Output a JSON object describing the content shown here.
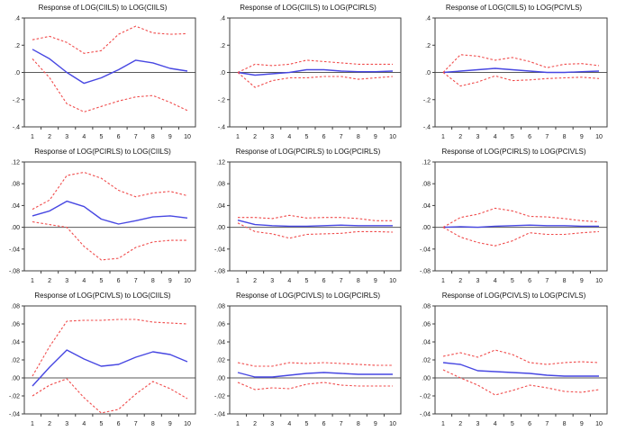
{
  "figure": {
    "layout": {
      "rows": 3,
      "cols": 3,
      "grid": false,
      "legend_position": "none"
    }
  },
  "colors": {
    "response_line": "#4747e2",
    "band_line": "#f04b4b",
    "zero_line": "#5a5a5a",
    "axis_frame": "#3f3f3f",
    "background": "#ffffff"
  },
  "chart_data": [
    {
      "type": "line",
      "title": "Response of LOG(CIILS) to LOG(CIILS)",
      "x": [
        1,
        2,
        3,
        4,
        5,
        6,
        7,
        8,
        9,
        10
      ],
      "xlabel": "",
      "ylabel": "",
      "ylim": [
        -0.4,
        0.4
      ],
      "ytick_values": [
        0.4,
        0.2,
        0.0,
        -0.2,
        -0.4
      ],
      "ytick_labels": [
        ".4",
        ".2",
        ".0",
        "-.2",
        "-.4"
      ],
      "zero_line": true,
      "series": [
        {
          "name": "response",
          "style": "solid",
          "values": [
            0.17,
            0.1,
            0.0,
            -0.08,
            -0.04,
            0.02,
            0.09,
            0.07,
            0.03,
            0.01
          ]
        },
        {
          "name": "upper-band",
          "style": "dashed",
          "values": [
            0.24,
            0.265,
            0.22,
            0.14,
            0.16,
            0.28,
            0.34,
            0.29,
            0.28,
            0.285
          ]
        },
        {
          "name": "lower-band",
          "style": "dashed",
          "values": [
            0.1,
            -0.04,
            -0.23,
            -0.29,
            -0.25,
            -0.21,
            -0.18,
            -0.17,
            -0.22,
            -0.28
          ]
        }
      ]
    },
    {
      "type": "line",
      "title": "Response of LOG(CIILS) to LOG(PCIRLS)",
      "x": [
        1,
        2,
        3,
        4,
        5,
        6,
        7,
        8,
        9,
        10
      ],
      "xlabel": "",
      "ylabel": "",
      "ylim": [
        -0.4,
        0.4
      ],
      "ytick_values": [
        0.4,
        0.2,
        0.0,
        -0.2,
        -0.4
      ],
      "ytick_labels": [
        ".4",
        ".2",
        ".0",
        "-.2",
        "-.4"
      ],
      "zero_line": true,
      "series": [
        {
          "name": "response",
          "style": "solid",
          "values": [
            0.0,
            -0.02,
            -0.01,
            0.0,
            0.02,
            0.02,
            0.01,
            0.005,
            0.005,
            0.01
          ]
        },
        {
          "name": "upper-band",
          "style": "dashed",
          "values": [
            0.0,
            0.06,
            0.05,
            0.06,
            0.09,
            0.08,
            0.07,
            0.06,
            0.06,
            0.06
          ]
        },
        {
          "name": "lower-band",
          "style": "dashed",
          "values": [
            0.0,
            -0.11,
            -0.06,
            -0.04,
            -0.04,
            -0.03,
            -0.03,
            -0.05,
            -0.04,
            -0.03
          ]
        }
      ]
    },
    {
      "type": "line",
      "title": "Response of LOG(CIILS) to LOG(PCIVLS)",
      "x": [
        1,
        2,
        3,
        4,
        5,
        6,
        7,
        8,
        9,
        10
      ],
      "xlabel": "",
      "ylabel": "",
      "ylim": [
        -0.4,
        0.4
      ],
      "ytick_values": [
        0.4,
        0.2,
        0.0,
        -0.2,
        -0.4
      ],
      "ytick_labels": [
        ".4",
        ".2",
        ".0",
        "-.2",
        "-.4"
      ],
      "zero_line": true,
      "series": [
        {
          "name": "response",
          "style": "solid",
          "values": [
            0.0,
            0.01,
            0.02,
            0.03,
            0.02,
            0.01,
            0.0,
            0.0,
            0.005,
            0.01
          ]
        },
        {
          "name": "upper-band",
          "style": "dashed",
          "values": [
            0.0,
            0.13,
            0.12,
            0.09,
            0.11,
            0.08,
            0.035,
            0.06,
            0.065,
            0.05
          ]
        },
        {
          "name": "lower-band",
          "style": "dashed",
          "values": [
            0.0,
            -0.1,
            -0.07,
            -0.025,
            -0.06,
            -0.055,
            -0.045,
            -0.04,
            -0.035,
            -0.045
          ]
        }
      ]
    },
    {
      "type": "line",
      "title": "Response of LOG(PCIRLS) to LOG(CIILS)",
      "x": [
        1,
        2,
        3,
        4,
        5,
        6,
        7,
        8,
        9,
        10
      ],
      "xlabel": "",
      "ylabel": "",
      "ylim": [
        -0.08,
        0.12
      ],
      "ytick_values": [
        0.12,
        0.08,
        0.04,
        0.0,
        -0.04,
        -0.08
      ],
      "ytick_labels": [
        ".12",
        ".08",
        ".04",
        ".00",
        "-.04",
        "-.08"
      ],
      "zero_line": true,
      "series": [
        {
          "name": "response",
          "style": "solid",
          "values": [
            0.021,
            0.03,
            0.048,
            0.038,
            0.015,
            0.006,
            0.012,
            0.019,
            0.021,
            0.017
          ]
        },
        {
          "name": "upper-band",
          "style": "dashed",
          "values": [
            0.033,
            0.05,
            0.095,
            0.101,
            0.09,
            0.068,
            0.056,
            0.063,
            0.066,
            0.058
          ]
        },
        {
          "name": "lower-band",
          "style": "dashed",
          "values": [
            0.01,
            0.005,
            0.0,
            -0.035,
            -0.06,
            -0.057,
            -0.037,
            -0.027,
            -0.024,
            -0.024
          ]
        }
      ]
    },
    {
      "type": "line",
      "title": "Response of LOG(PCIRLS) to LOG(PCIRLS)",
      "x": [
        1,
        2,
        3,
        4,
        5,
        6,
        7,
        8,
        9,
        10
      ],
      "xlabel": "",
      "ylabel": "",
      "ylim": [
        -0.08,
        0.12
      ],
      "ytick_values": [
        0.12,
        0.08,
        0.04,
        0.0,
        -0.04,
        -0.08
      ],
      "ytick_labels": [
        ".12",
        ".08",
        ".04",
        ".00",
        "-.04",
        "-.08"
      ],
      "zero_line": true,
      "series": [
        {
          "name": "response",
          "style": "solid",
          "values": [
            0.013,
            0.005,
            0.003,
            0.002,
            0.002,
            0.003,
            0.004,
            0.003,
            0.003,
            0.003
          ]
        },
        {
          "name": "upper-band",
          "style": "dashed",
          "values": [
            0.018,
            0.018,
            0.016,
            0.022,
            0.017,
            0.018,
            0.018,
            0.016,
            0.012,
            0.012
          ]
        },
        {
          "name": "lower-band",
          "style": "dashed",
          "values": [
            0.008,
            -0.008,
            -0.012,
            -0.02,
            -0.013,
            -0.012,
            -0.011,
            -0.008,
            -0.008,
            -0.009
          ]
        }
      ]
    },
    {
      "type": "line",
      "title": "Response of LOG(PCIRLS) to LOG(PCIVLS)",
      "x": [
        1,
        2,
        3,
        4,
        5,
        6,
        7,
        8,
        9,
        10
      ],
      "xlabel": "",
      "ylabel": "",
      "ylim": [
        -0.08,
        0.12
      ],
      "ytick_values": [
        0.12,
        0.08,
        0.04,
        0.0,
        -0.04,
        -0.08
      ],
      "ytick_labels": [
        ".12",
        ".08",
        ".04",
        ".00",
        "-.04",
        "-.08"
      ],
      "zero_line": true,
      "series": [
        {
          "name": "response",
          "style": "solid",
          "values": [
            0.0,
            0.001,
            0.0,
            0.002,
            0.003,
            0.004,
            0.003,
            0.003,
            0.002,
            0.002
          ]
        },
        {
          "name": "upper-band",
          "style": "dashed",
          "values": [
            0.0,
            0.018,
            0.024,
            0.035,
            0.03,
            0.02,
            0.019,
            0.016,
            0.012,
            0.01
          ]
        },
        {
          "name": "lower-band",
          "style": "dashed",
          "values": [
            0.0,
            -0.018,
            -0.028,
            -0.034,
            -0.025,
            -0.01,
            -0.013,
            -0.013,
            -0.01,
            -0.008
          ]
        }
      ]
    },
    {
      "type": "line",
      "title": "Response of LOG(PCIVLS) to LOG(CIILS)",
      "x": [
        1,
        2,
        3,
        4,
        5,
        6,
        7,
        8,
        9,
        10
      ],
      "xlabel": "",
      "ylabel": "",
      "ylim": [
        -0.04,
        0.08
      ],
      "ytick_values": [
        0.08,
        0.06,
        0.04,
        0.02,
        0.0,
        -0.02,
        -0.04
      ],
      "ytick_labels": [
        ".08",
        ".06",
        ".04",
        ".02",
        ".00",
        "-.02",
        "-.04"
      ],
      "zero_line": true,
      "series": [
        {
          "name": "response",
          "style": "solid",
          "values": [
            -0.009,
            0.012,
            0.031,
            0.021,
            0.013,
            0.015,
            0.023,
            0.029,
            0.026,
            0.018
          ]
        },
        {
          "name": "upper-band",
          "style": "dashed",
          "values": [
            0.002,
            0.035,
            0.063,
            0.064,
            0.064,
            0.065,
            0.065,
            0.062,
            0.061,
            0.06
          ]
        },
        {
          "name": "lower-band",
          "style": "dashed",
          "values": [
            -0.02,
            -0.008,
            -0.001,
            -0.022,
            -0.039,
            -0.035,
            -0.018,
            -0.004,
            -0.012,
            -0.023
          ]
        }
      ]
    },
    {
      "type": "line",
      "title": "Response of LOG(PCIVLS) to LOG(PCIRLS)",
      "x": [
        1,
        2,
        3,
        4,
        5,
        6,
        7,
        8,
        9,
        10
      ],
      "xlabel": "",
      "ylabel": "",
      "ylim": [
        -0.04,
        0.08
      ],
      "ytick_values": [
        0.08,
        0.06,
        0.04,
        0.02,
        0.0,
        -0.02,
        -0.04
      ],
      "ytick_labels": [
        ".08",
        ".06",
        ".04",
        ".02",
        ".00",
        "-.02",
        "-.04"
      ],
      "zero_line": true,
      "series": [
        {
          "name": "response",
          "style": "solid",
          "values": [
            0.006,
            0.001,
            0.001,
            0.003,
            0.005,
            0.006,
            0.005,
            0.004,
            0.004,
            0.004
          ]
        },
        {
          "name": "upper-band",
          "style": "dashed",
          "values": [
            0.017,
            0.013,
            0.013,
            0.017,
            0.016,
            0.017,
            0.016,
            0.015,
            0.014,
            0.014
          ]
        },
        {
          "name": "lower-band",
          "style": "dashed",
          "values": [
            -0.005,
            -0.013,
            -0.011,
            -0.012,
            -0.007,
            -0.005,
            -0.008,
            -0.009,
            -0.009,
            -0.009
          ]
        }
      ]
    },
    {
      "type": "line",
      "title": "Response of LOG(PCIVLS) to LOG(PCIVLS)",
      "x": [
        1,
        2,
        3,
        4,
        5,
        6,
        7,
        8,
        9,
        10
      ],
      "xlabel": "",
      "ylabel": "",
      "ylim": [
        -0.04,
        0.08
      ],
      "ytick_values": [
        0.08,
        0.06,
        0.04,
        0.02,
        0.0,
        -0.02,
        -0.04
      ],
      "ytick_labels": [
        ".08",
        ".06",
        ".04",
        ".02",
        ".00",
        "-.02",
        "-.04"
      ],
      "zero_line": true,
      "series": [
        {
          "name": "response",
          "style": "solid",
          "values": [
            0.017,
            0.015,
            0.008,
            0.007,
            0.006,
            0.005,
            0.003,
            0.002,
            0.002,
            0.002
          ]
        },
        {
          "name": "upper-band",
          "style": "dashed",
          "values": [
            0.024,
            0.028,
            0.023,
            0.031,
            0.026,
            0.017,
            0.015,
            0.017,
            0.018,
            0.017
          ]
        },
        {
          "name": "lower-band",
          "style": "dashed",
          "values": [
            0.009,
            0.0,
            -0.008,
            -0.019,
            -0.014,
            -0.008,
            -0.011,
            -0.015,
            -0.016,
            -0.013
          ]
        }
      ]
    }
  ]
}
